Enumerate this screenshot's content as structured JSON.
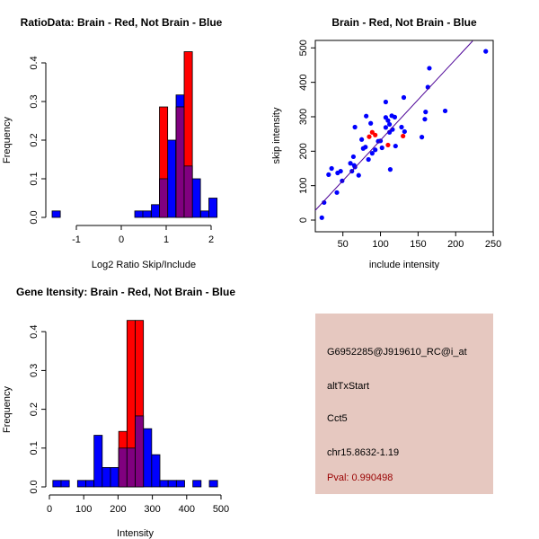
{
  "chart_data": [
    {
      "type": "bar",
      "title": "RatioData: Brain - Red, Not Brain - Blue",
      "xlabel": "Log2 Ratio Skip/Include",
      "ylabel": "Frequency",
      "xticks": [
        "-1",
        "0",
        "1",
        "2"
      ],
      "xtick_values": [
        -1,
        0,
        1,
        2
      ],
      "yticks": [
        "0.0",
        "0.1",
        "0.2",
        "0.3",
        "0.4"
      ],
      "ytick_values": [
        0,
        0.1,
        0.2,
        0.3,
        0.4
      ],
      "bin_width": 0.183,
      "series": [
        {
          "name": "Not Brain",
          "color": "#0000FF",
          "bin_starts": [
            -1.54,
            0.3,
            0.48,
            0.67,
            0.85,
            1.03,
            1.22,
            1.4,
            1.58,
            1.77,
            1.95
          ],
          "values": [
            0.0167,
            0.0167,
            0.0167,
            0.033,
            0.1,
            0.2,
            0.317,
            0.133,
            0.1,
            0.0167,
            0.05
          ]
        },
        {
          "name": "Brain",
          "color": "#FF0000",
          "bin_starts": [
            0.85,
            1.22,
            1.4
          ],
          "values": [
            0.286,
            0.286,
            0.429
          ]
        }
      ],
      "overlap_color": "#80007F"
    },
    {
      "type": "scatter",
      "title": "Brain - Red, Not Brain - Blue",
      "xlabel": "include intensity",
      "ylabel": "skip intensity",
      "xticks": [
        "50",
        "100",
        "150",
        "200",
        "250"
      ],
      "xtick_values": [
        50,
        100,
        150,
        200,
        250
      ],
      "yticks": [
        "0",
        "100",
        "200",
        "300",
        "400",
        "500"
      ],
      "ytick_values": [
        0,
        100,
        200,
        300,
        400,
        500
      ],
      "series": [
        {
          "name": "Not Brain",
          "color": "#0000FF",
          "points": [
            [
              22,
              7
            ],
            [
              25,
              51
            ],
            [
              31,
              132
            ],
            [
              35,
              150
            ],
            [
              42,
              80
            ],
            [
              43,
              137
            ],
            [
              47,
              142
            ],
            [
              49,
              114
            ],
            [
              60,
              165
            ],
            [
              62,
              142
            ],
            [
              64,
              184
            ],
            [
              65,
              159
            ],
            [
              66,
              154
            ],
            [
              66,
              270
            ],
            [
              71,
              130
            ],
            [
              75,
              234
            ],
            [
              77,
              208
            ],
            [
              80,
              212
            ],
            [
              81,
              302
            ],
            [
              84,
              176
            ],
            [
              87,
              281
            ],
            [
              89,
              194
            ],
            [
              93,
              204
            ],
            [
              97,
              229
            ],
            [
              100,
              230
            ],
            [
              102,
              210
            ],
            [
              107,
              343
            ],
            [
              107,
              269
            ],
            [
              107,
              298
            ],
            [
              110,
              289
            ],
            [
              112,
              278
            ],
            [
              113,
              147
            ],
            [
              112,
              255
            ],
            [
              115,
              303
            ],
            [
              116,
              263
            ],
            [
              119,
              299
            ],
            [
              120,
              215
            ],
            [
              128,
              270
            ],
            [
              131,
              356
            ],
            [
              132,
              257
            ],
            [
              155,
              241
            ],
            [
              159,
              293
            ],
            [
              160,
              314
            ],
            [
              163,
              386
            ],
            [
              165,
              441
            ],
            [
              186,
              317
            ],
            [
              240,
              490
            ]
          ]
        },
        {
          "name": "Brain",
          "color": "#FF0000",
          "points": [
            [
              85,
              242
            ],
            [
              89,
              255
            ],
            [
              93,
              247
            ],
            [
              110,
              218
            ],
            [
              130,
              244
            ]
          ]
        }
      ],
      "fit_line": {
        "slope": 2.35,
        "intercept": -3,
        "color": "#4B0096"
      }
    },
    {
      "type": "bar",
      "title": "Gene Itensity: Brain - Red, Not Brain - Blue",
      "xlabel": "Intensity",
      "ylabel": "Frequency",
      "xticks": [
        "0",
        "100",
        "200",
        "300",
        "400",
        "500"
      ],
      "xtick_values": [
        0,
        100,
        200,
        300,
        400,
        500
      ],
      "yticks": [
        "0.0",
        "0.1",
        "0.2",
        "0.3",
        "0.4"
      ],
      "ytick_values": [
        0,
        0.1,
        0.2,
        0.3,
        0.4
      ],
      "bin_width": 24,
      "series": [
        {
          "name": "Not Brain",
          "color": "#0000FF",
          "bin_starts": [
            10,
            34,
            82,
            106,
            130,
            154,
            178,
            202,
            226,
            250,
            274,
            298,
            322,
            346,
            370,
            418,
            466
          ],
          "values": [
            0.0167,
            0.0167,
            0.0167,
            0.0167,
            0.133,
            0.05,
            0.05,
            0.1,
            0.1,
            0.183,
            0.15,
            0.083,
            0.0167,
            0.0167,
            0.0167,
            0.0167,
            0.0167
          ]
        },
        {
          "name": "Brain",
          "color": "#FF0000",
          "bin_starts": [
            202,
            226,
            250
          ],
          "values": [
            0.143,
            0.429,
            0.429
          ]
        }
      ],
      "overlap_color": "#80007F"
    }
  ],
  "info_panel": {
    "background": "#E6C8C0",
    "probe_id": "G6952285@J919610_RC@i_at",
    "event_type": "altTxStart",
    "gene": "Cct5",
    "location": "chr15.8632-1.19",
    "pval": "Pval: 0.990498",
    "pval_color": "#990000"
  }
}
